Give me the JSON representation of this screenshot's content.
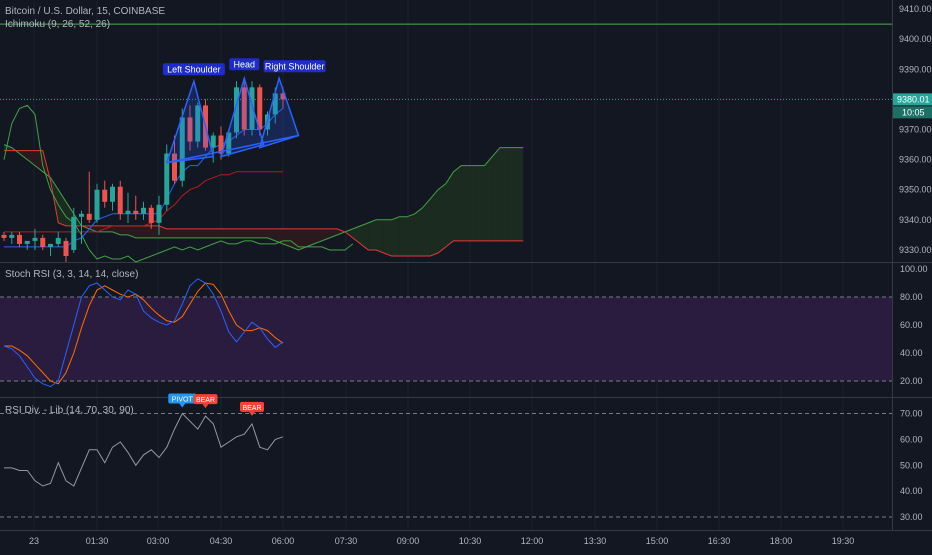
{
  "main_legend": "Bitcoin / U.S. Dollar, 15, COINBASE",
  "ichimoku_legend": "Ichimoku (9, 26, 52, 26)",
  "stoch_legend": "Stoch RSI (3, 3, 14, 14, close)",
  "rsidiv_legend": "RSI Div. - Lib (14, 70, 30, 90)",
  "colors": {
    "background": "#131722",
    "up": "#26a69a",
    "down": "#ef5350",
    "pattern": "#2962ff",
    "stoch_k": "#2962ff",
    "stoch_d": "#ff6d00",
    "stoch_band": "#2a1c3f",
    "kumo_bull": "#1b2b20",
    "kumo_bear": "#2a1a1d",
    "last_price": "#26a69a"
  },
  "chart_data": [
    {
      "type": "candlestick",
      "name": "Bitcoin / U.S. Dollar, 15, COINBASE",
      "yticks": [
        "9410.00",
        "9400.00",
        "9390.00",
        "9380.00",
        "9370.00",
        "9360.00",
        "9350.00",
        "9340.00",
        "9330.00"
      ],
      "ylim": [
        9326,
        9413
      ],
      "x_time_ticks": [
        "23",
        "01:30",
        "03:00",
        "04:30",
        "06:00",
        "07:30",
        "09:00",
        "10:30",
        "12:00",
        "13:30",
        "15:00",
        "16:30",
        "18:00",
        "19:30"
      ],
      "last_price": "9380.01",
      "countdown": "10:05",
      "horizontal_line": 9405,
      "candles": [
        {
          "o": 9335,
          "h": 9336,
          "l": 9333,
          "c": 9334
        },
        {
          "o": 9334,
          "h": 9336,
          "l": 9332,
          "c": 9335
        },
        {
          "o": 9335,
          "h": 9336,
          "l": 9331,
          "c": 9332
        },
        {
          "o": 9332,
          "h": 9333,
          "l": 9330,
          "c": 9333
        },
        {
          "o": 9333,
          "h": 9337,
          "l": 9330,
          "c": 9334
        },
        {
          "o": 9334,
          "h": 9335,
          "l": 9330,
          "c": 9331
        },
        {
          "o": 9331,
          "h": 9332,
          "l": 9328,
          "c": 9332
        },
        {
          "o": 9332,
          "h": 9336,
          "l": 9331,
          "c": 9334
        },
        {
          "o": 9333,
          "h": 9334,
          "l": 9326,
          "c": 9328
        },
        {
          "o": 9330,
          "h": 9344,
          "l": 9329,
          "c": 9341
        },
        {
          "o": 9341,
          "h": 9343,
          "l": 9332,
          "c": 9342
        },
        {
          "o": 9342,
          "h": 9356,
          "l": 9339,
          "c": 9340
        },
        {
          "o": 9340,
          "h": 9352,
          "l": 9339,
          "c": 9350
        },
        {
          "o": 9350,
          "h": 9353,
          "l": 9344,
          "c": 9346
        },
        {
          "o": 9346,
          "h": 9352,
          "l": 9343,
          "c": 9351
        },
        {
          "o": 9351,
          "h": 9353,
          "l": 9340,
          "c": 9342
        },
        {
          "o": 9342,
          "h": 9349,
          "l": 9339,
          "c": 9343
        },
        {
          "o": 9343,
          "h": 9348,
          "l": 9340,
          "c": 9342
        },
        {
          "o": 9342,
          "h": 9346,
          "l": 9340,
          "c": 9344
        },
        {
          "o": 9344,
          "h": 9345,
          "l": 9337,
          "c": 9339
        },
        {
          "o": 9339,
          "h": 9348,
          "l": 9335,
          "c": 9345
        },
        {
          "o": 9345,
          "h": 9365,
          "l": 9343,
          "c": 9362
        },
        {
          "o": 9362,
          "h": 9368,
          "l": 9352,
          "c": 9353
        },
        {
          "o": 9353,
          "h": 9377,
          "l": 9351,
          "c": 9374
        },
        {
          "o": 9374,
          "h": 9378,
          "l": 9363,
          "c": 9366
        },
        {
          "o": 9366,
          "h": 9379,
          "l": 9364,
          "c": 9378
        },
        {
          "o": 9378,
          "h": 9380,
          "l": 9363,
          "c": 9364
        },
        {
          "o": 9364,
          "h": 9369,
          "l": 9359,
          "c": 9368
        },
        {
          "o": 9368,
          "h": 9371,
          "l": 9360,
          "c": 9362
        },
        {
          "o": 9362,
          "h": 9370,
          "l": 9361,
          "c": 9369
        },
        {
          "o": 9369,
          "h": 9386,
          "l": 9367,
          "c": 9384
        },
        {
          "o": 9384,
          "h": 9386,
          "l": 9368,
          "c": 9370
        },
        {
          "o": 9370,
          "h": 9386,
          "l": 9368,
          "c": 9384
        },
        {
          "o": 9384,
          "h": 9385,
          "l": 9368,
          "c": 9370
        },
        {
          "o": 9370,
          "h": 9376,
          "l": 9368,
          "c": 9375
        },
        {
          "o": 9375,
          "h": 9384,
          "l": 9372,
          "c": 9382
        },
        {
          "o": 9382,
          "h": 9384,
          "l": 9377,
          "c": 9380
        }
      ],
      "ichimoku": {
        "conversion": [
          9331,
          9331,
          9331,
          9331,
          9331,
          9331,
          9331,
          9331,
          9331,
          9333,
          9334,
          9337,
          9340,
          9341,
          9342,
          9342,
          9342,
          9342,
          9342,
          9342,
          9342,
          9347,
          9352,
          9356,
          9358,
          9358,
          9361,
          9364,
          9365,
          9366,
          9368,
          9370,
          9370,
          9370,
          9372,
          9375,
          9377
        ],
        "base": [
          9336,
          9336,
          9336,
          9336,
          9336,
          9336,
          9336,
          9336,
          9336,
          9336,
          9336,
          9336,
          9336,
          9337,
          9338,
          9338,
          9338,
          9338,
          9338,
          9339,
          9340,
          9343,
          9345,
          9348,
          9350,
          9351,
          9353,
          9354,
          9355,
          9355,
          9356,
          9356,
          9356,
          9356,
          9356,
          9356,
          9356
        ],
        "lagging": [
          9360,
          9372,
          9377,
          9378,
          9375,
          9358,
          9350,
          9345,
          9341,
          9339,
          9335,
          9330,
          9327,
          9328,
          9327,
          9327,
          9328,
          9326,
          9327,
          9328,
          9329,
          9330,
          9331,
          9330,
          9331,
          9330,
          9331,
          9332,
          9333,
          9332,
          9332,
          9333,
          9333,
          9332,
          9332,
          9332,
          9333,
          9333,
          9331,
          9331,
          9331,
          9331,
          9330,
          9330,
          9330,
          9332
        ],
        "span_a": [
          9365,
          9364,
          9362,
          9360,
          9358,
          9356,
          9354,
          9350,
          9346,
          9342,
          9338,
          9337,
          9336,
          9336,
          9336,
          9335,
          9335,
          9334,
          9334,
          9334,
          9334,
          9334,
          9334,
          9334,
          9334,
          9334,
          9334,
          9334,
          9334,
          9334,
          9334,
          9334,
          9334,
          9334,
          9334,
          9333,
          9332,
          9331,
          9330,
          9331,
          9332,
          9333,
          9334,
          9335,
          9336,
          9337,
          9338,
          9339,
          9340,
          9340,
          9340,
          9341,
          9341,
          9342,
          9344,
          9347,
          9350,
          9352,
          9356,
          9358,
          9358,
          9358,
          9358,
          9361,
          9364,
          9364,
          9364,
          9364
        ],
        "span_b": [
          9363,
          9363,
          9363,
          9363,
          9363,
          9363,
          9353,
          9339,
          9338,
          9338,
          9338,
          9338,
          9338,
          9338,
          9338,
          9338,
          9338,
          9338,
          9338,
          9338,
          9338,
          9337,
          9337,
          9337,
          9337,
          9337,
          9337,
          9337,
          9337,
          9337,
          9337,
          9337,
          9337,
          9337,
          9337,
          9337,
          9337,
          9337,
          9337,
          9337,
          9337,
          9337,
          9337,
          9337,
          9336,
          9334,
          9332,
          9330,
          9330,
          9329,
          9328,
          9328,
          9328,
          9328,
          9328,
          9328,
          9329,
          9331,
          9333,
          9333,
          9333,
          9333,
          9333,
          9333,
          9333,
          9333,
          9333,
          9333
        ]
      },
      "pattern": {
        "labels": [
          "Left Shoulder",
          "Head",
          "Right Shoulder"
        ],
        "triangles": [
          [
            [
              21,
              9359
            ],
            [
              24.5,
              9386
            ],
            [
              27,
              9361
            ]
          ],
          [
            [
              28,
              9361
            ],
            [
              31,
              9387
            ],
            [
              33.5,
              9365
            ]
          ],
          [
            [
              33,
              9364
            ],
            [
              35.5,
              9387
            ],
            [
              38,
              9368
            ]
          ]
        ]
      }
    },
    {
      "type": "line",
      "name": "Stoch RSI (3, 3, 14, 14, close)",
      "yticks": [
        "100.00",
        "80.00",
        "60.00",
        "40.00",
        "20.00"
      ],
      "ylim": [
        0,
        100
      ],
      "band": [
        20,
        80
      ],
      "series": [
        {
          "values": [
            45,
            43,
            38,
            30,
            22,
            18,
            16,
            20,
            40,
            60,
            80,
            88,
            90,
            85,
            80,
            78,
            85,
            82,
            70,
            65,
            62,
            60,
            63,
            75,
            88,
            93,
            90,
            82,
            70,
            55,
            48,
            55,
            62,
            58,
            50,
            44,
            48
          ]
        },
        {
          "values": [
            45,
            45,
            42,
            38,
            32,
            26,
            20,
            18,
            26,
            40,
            58,
            74,
            85,
            88,
            85,
            82,
            80,
            82,
            78,
            72,
            67,
            63,
            62,
            66,
            75,
            84,
            90,
            89,
            82,
            70,
            60,
            56,
            56,
            58,
            56,
            51,
            47
          ]
        }
      ]
    },
    {
      "type": "line",
      "name": "RSI Div. - Lib (14, 70, 30, 90)",
      "yticks": [
        "70.00",
        "60.00",
        "50.00",
        "40.00",
        "30.00"
      ],
      "ylim": [
        25,
        76
      ],
      "dashed_levels": [
        70,
        30
      ],
      "series": [
        {
          "values": [
            49,
            49,
            48,
            48,
            44,
            42,
            43,
            51,
            44,
            42,
            49,
            56,
            56,
            51,
            57,
            59,
            55,
            50,
            54,
            56,
            53,
            57,
            64,
            70,
            67,
            64,
            69,
            66,
            57,
            59,
            61,
            62,
            66,
            57,
            56,
            60,
            61
          ]
        }
      ],
      "markers": [
        {
          "label": "PIVOT",
          "index": 23,
          "value": 70
        },
        {
          "label": "BEAR",
          "index": 26,
          "value": 69
        },
        {
          "label": "BEAR",
          "index": 32,
          "value": 66
        }
      ]
    }
  ]
}
